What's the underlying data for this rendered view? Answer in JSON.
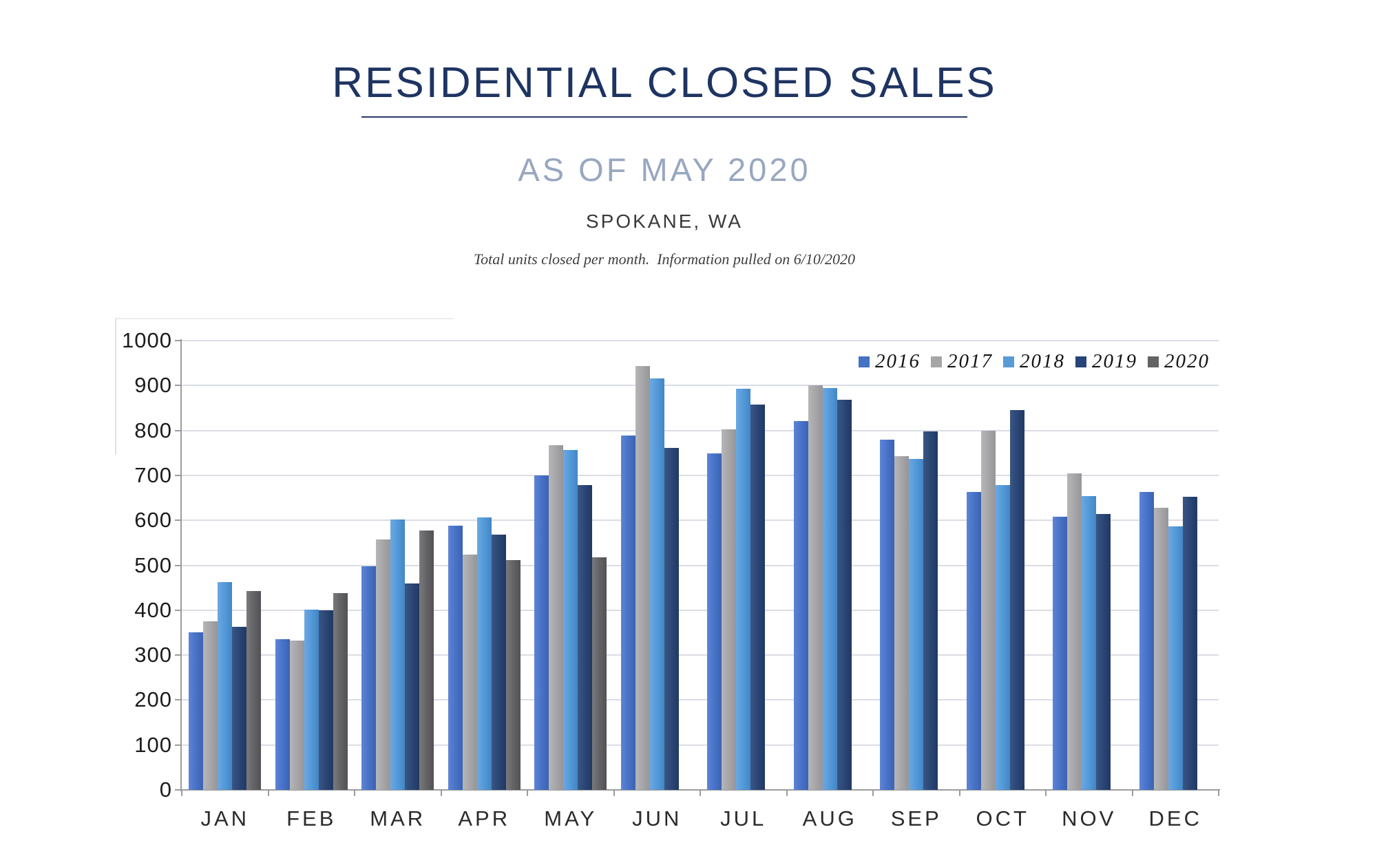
{
  "header": {
    "title": "RESIDENTIAL CLOSED SALES",
    "subtitle": "AS OF MAY 2020",
    "location": "SPOKANE, WA",
    "note": "Total units closed per month.  Information pulled on 6/10/2020"
  },
  "chart_data": {
    "type": "bar",
    "title": "RESIDENTIAL CLOSED SALES",
    "subtitle": "AS OF MAY 2020",
    "region": "SPOKANE, WA",
    "xlabel": "",
    "ylabel": "",
    "categories": [
      "JAN",
      "FEB",
      "MAR",
      "APR",
      "MAY",
      "JUN",
      "JUL",
      "AUG",
      "SEP",
      "OCT",
      "NOV",
      "DEC"
    ],
    "series": [
      {
        "name": "2016",
        "color": "#4472C4",
        "values": [
          350,
          336,
          498,
          588,
          700,
          789,
          749,
          821,
          779,
          663,
          608,
          663
        ]
      },
      {
        "name": "2017",
        "color": "#A6A6A6",
        "values": [
          375,
          332,
          557,
          524,
          767,
          943,
          802,
          901,
          742,
          800,
          704,
          628
        ]
      },
      {
        "name": "2018",
        "color": "#5B9BD5",
        "values": [
          462,
          402,
          602,
          607,
          756,
          916,
          893,
          894,
          736,
          678,
          654,
          586
        ]
      },
      {
        "name": "2019",
        "color": "#264478",
        "values": [
          363,
          400,
          460,
          568,
          678,
          761,
          857,
          868,
          798,
          846,
          614,
          653
        ]
      },
      {
        "name": "2020",
        "color": "#636363",
        "values": [
          443,
          438,
          578,
          511,
          517,
          null,
          null,
          null,
          null,
          null,
          null,
          null
        ]
      }
    ],
    "ylim": [
      0,
      1000
    ],
    "ytick_step": 100,
    "ytick_labels": [
      "0",
      "100",
      "200",
      "300",
      "400",
      "500",
      "600",
      "700",
      "800",
      "900",
      "1000"
    ],
    "grid": true,
    "legend_position": "top-right"
  }
}
